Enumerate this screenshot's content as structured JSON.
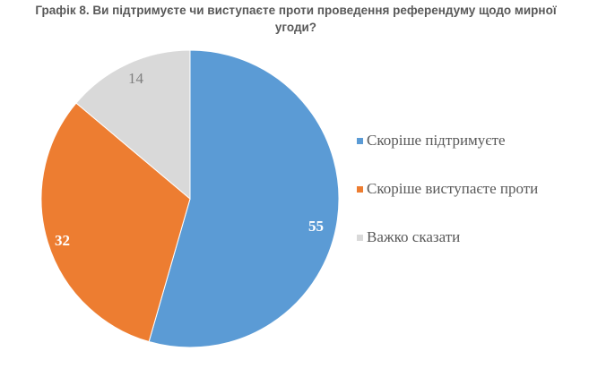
{
  "title": {
    "line1": "Графік 8. Ви підтримуєте чи виступаєте проти проведення референдуму щодо мирної",
    "line2": "угоди?"
  },
  "colors": {
    "support": "#5b9bd5",
    "oppose": "#ed7d31",
    "hard_to_say": "#d9d9d9"
  },
  "legend": [
    {
      "label": "Скоріше підтримуєте",
      "color": "#5b9bd5"
    },
    {
      "label": "Скоріше виступаєте проти",
      "color": "#ed7d31"
    },
    {
      "label": "Важко сказати",
      "color": "#d9d9d9"
    }
  ],
  "data_labels": {
    "support": "55",
    "oppose": "32",
    "hard_to_say": "14"
  },
  "chart_data": {
    "type": "pie",
    "title": "Графік 8. Ви підтримуєте чи виступаєте проти проведення референдуму щодо мирної угоди?",
    "categories": [
      "Скоріше підтримуєте",
      "Скоріше виступаєте проти",
      "Важко сказати"
    ],
    "values": [
      55,
      32,
      14
    ],
    "colors": [
      "#5b9bd5",
      "#ed7d31",
      "#d9d9d9"
    ],
    "legend_position": "right",
    "start_angle": "12 o'clock, clockwise"
  }
}
